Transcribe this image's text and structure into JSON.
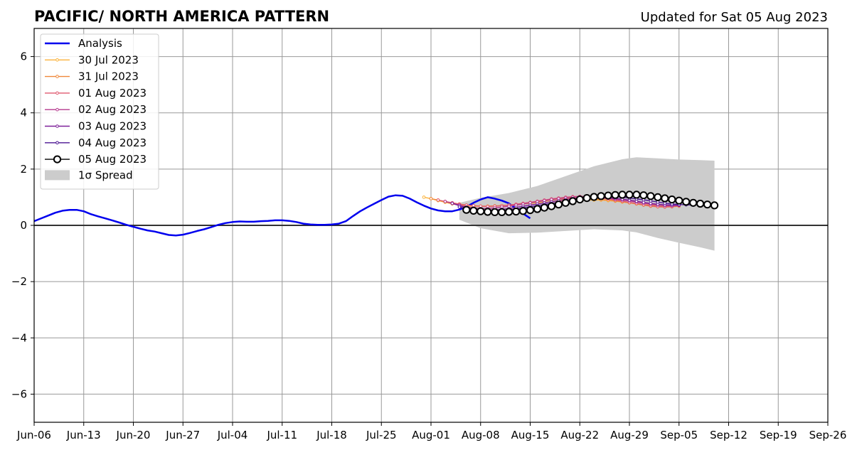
{
  "chart_data": {
    "type": "line",
    "title": "PACIFIC/ NORTH AMERICA PATTERN",
    "subtitle": "Updated for Sat 05 Aug 2023",
    "xlabel": "",
    "ylabel": "",
    "xlim": [
      "2023-06-06",
      "2023-09-26"
    ],
    "ylim": [
      -7,
      7
    ],
    "grid": true,
    "legend_position": "top-left",
    "x_ticks": [
      "Jun-06",
      "Jun-13",
      "Jun-20",
      "Jun-27",
      "Jul-04",
      "Jul-11",
      "Jul-18",
      "Jul-25",
      "Aug-01",
      "Aug-08",
      "Aug-15",
      "Aug-22",
      "Aug-29",
      "Sep-05",
      "Sep-12",
      "Sep-19",
      "Sep-26"
    ],
    "y_ticks": [
      "−6",
      "−4",
      "−2",
      "0",
      "2",
      "4",
      "6"
    ],
    "analysis": {
      "name": "Analysis",
      "color": "#0000ee",
      "start_date": "2023-06-06",
      "values": [
        0.15,
        0.25,
        0.35,
        0.45,
        0.52,
        0.55,
        0.55,
        0.5,
        0.4,
        0.32,
        0.25,
        0.18,
        0.1,
        0.02,
        -0.05,
        -0.12,
        -0.18,
        -0.22,
        -0.28,
        -0.34,
        -0.36,
        -0.33,
        -0.27,
        -0.2,
        -0.14,
        -0.06,
        0.02,
        0.08,
        0.12,
        0.14,
        0.13,
        0.13,
        0.15,
        0.16,
        0.18,
        0.18,
        0.16,
        0.12,
        0.06,
        0.03,
        0.02,
        0.02,
        0.03,
        0.06,
        0.15,
        0.33,
        0.5,
        0.64,
        0.77,
        0.9,
        1.02,
        1.07,
        1.05,
        0.95,
        0.82,
        0.7,
        0.6,
        0.53,
        0.5,
        0.5,
        0.56,
        0.66,
        0.8,
        0.92,
        1.0,
        0.95,
        0.88,
        0.78,
        0.6,
        0.42,
        0.25
      ]
    },
    "forecasts": [
      {
        "name": "30 Jul 2023",
        "color": "#fbb33b",
        "start_date": "2023-07-31",
        "values": [
          1.0,
          0.95,
          0.88,
          0.82,
          0.76,
          0.72,
          0.7,
          0.68,
          0.68,
          0.68,
          0.69,
          0.7,
          0.72,
          0.74,
          0.76,
          0.78,
          0.8,
          0.82,
          0.84,
          0.86,
          0.88,
          0.89,
          0.9,
          0.9,
          0.9,
          0.9,
          0.88,
          0.86,
          0.83,
          0.8,
          0.77,
          0.74,
          0.72,
          0.7,
          0.69,
          0.69,
          0.7
        ]
      },
      {
        "name": "31 Jul 2023",
        "color": "#f0883a",
        "start_date": "2023-08-01",
        "values": [
          0.95,
          0.9,
          0.85,
          0.8,
          0.76,
          0.72,
          0.7,
          0.68,
          0.68,
          0.69,
          0.7,
          0.72,
          0.75,
          0.78,
          0.81,
          0.84,
          0.87,
          0.9,
          0.93,
          0.95,
          0.97,
          0.97,
          0.96,
          0.94,
          0.92,
          0.9,
          0.87,
          0.84,
          0.8,
          0.76,
          0.72,
          0.68,
          0.66,
          0.65,
          0.66,
          0.68
        ]
      },
      {
        "name": "01 Aug 2023",
        "color": "#e0596f",
        "start_date": "2023-08-02",
        "values": [
          0.9,
          0.85,
          0.8,
          0.75,
          0.72,
          0.7,
          0.68,
          0.67,
          0.68,
          0.7,
          0.72,
          0.75,
          0.78,
          0.82,
          0.86,
          0.9,
          0.94,
          0.97,
          1.0,
          1.02,
          1.03,
          1.02,
          1.0,
          0.97,
          0.94,
          0.9,
          0.86,
          0.82,
          0.78,
          0.74,
          0.7,
          0.67,
          0.66,
          0.67,
          0.7
        ]
      },
      {
        "name": "02 Aug 2023",
        "color": "#b53a8e",
        "start_date": "2023-08-03",
        "values": [
          0.85,
          0.78,
          0.72,
          0.66,
          0.62,
          0.6,
          0.6,
          0.62,
          0.65,
          0.68,
          0.72,
          0.76,
          0.8,
          0.84,
          0.88,
          0.92,
          0.95,
          0.98,
          1.0,
          1.02,
          1.02,
          1.01,
          0.99,
          0.96,
          0.93,
          0.9,
          0.87,
          0.83,
          0.79,
          0.75,
          0.72,
          0.7,
          0.7,
          0.71
        ]
      },
      {
        "name": "03 Aug 2023",
        "color": "#7e2199",
        "start_date": "2023-08-04",
        "values": [
          0.78,
          0.7,
          0.63,
          0.58,
          0.55,
          0.54,
          0.55,
          0.57,
          0.6,
          0.64,
          0.68,
          0.72,
          0.76,
          0.8,
          0.84,
          0.88,
          0.92,
          0.95,
          0.98,
          1.0,
          1.01,
          1.0,
          0.98,
          0.96,
          0.93,
          0.9,
          0.86,
          0.82,
          0.78,
          0.75,
          0.73,
          0.72,
          0.72
        ]
      },
      {
        "name": "04 Aug 2023",
        "color": "#4b1592",
        "start_date": "2023-08-05",
        "values": [
          0.65,
          0.6,
          0.56,
          0.53,
          0.52,
          0.52,
          0.53,
          0.55,
          0.58,
          0.62,
          0.66,
          0.7,
          0.74,
          0.78,
          0.82,
          0.86,
          0.9,
          0.94,
          0.97,
          1.0,
          1.02,
          1.03,
          1.02,
          1.0,
          0.97,
          0.94,
          0.91,
          0.87,
          0.83,
          0.79,
          0.76,
          0.74,
          0.73,
          0.72
        ]
      },
      {
        "name": "05 Aug 2023",
        "color": "#000000",
        "start_date": "2023-08-06",
        "markers": "open-circle",
        "values": [
          0.55,
          0.52,
          0.5,
          0.48,
          0.47,
          0.47,
          0.48,
          0.49,
          0.51,
          0.54,
          0.58,
          0.63,
          0.68,
          0.74,
          0.8,
          0.86,
          0.92,
          0.97,
          1.01,
          1.04,
          1.06,
          1.08,
          1.09,
          1.09,
          1.09,
          1.07,
          1.04,
          1.0,
          0.96,
          0.92,
          0.88,
          0.84,
          0.8,
          0.77,
          0.74,
          0.71
        ]
      }
    ],
    "spread": {
      "name": "1σ Spread",
      "color": "#cccccc",
      "dates": [
        "2023-08-05",
        "2023-08-08",
        "2023-08-12",
        "2023-08-16",
        "2023-08-20",
        "2023-08-24",
        "2023-08-28",
        "2023-08-30",
        "2023-09-02",
        "2023-09-05",
        "2023-09-08",
        "2023-09-10"
      ],
      "upper": [
        0.8,
        0.98,
        1.15,
        1.4,
        1.75,
        2.1,
        2.35,
        2.42,
        2.38,
        2.34,
        2.32,
        2.3
      ],
      "lower": [
        0.2,
        -0.1,
        -0.28,
        -0.26,
        -0.2,
        -0.14,
        -0.18,
        -0.25,
        -0.45,
        -0.62,
        -0.78,
        -0.9
      ]
    }
  }
}
